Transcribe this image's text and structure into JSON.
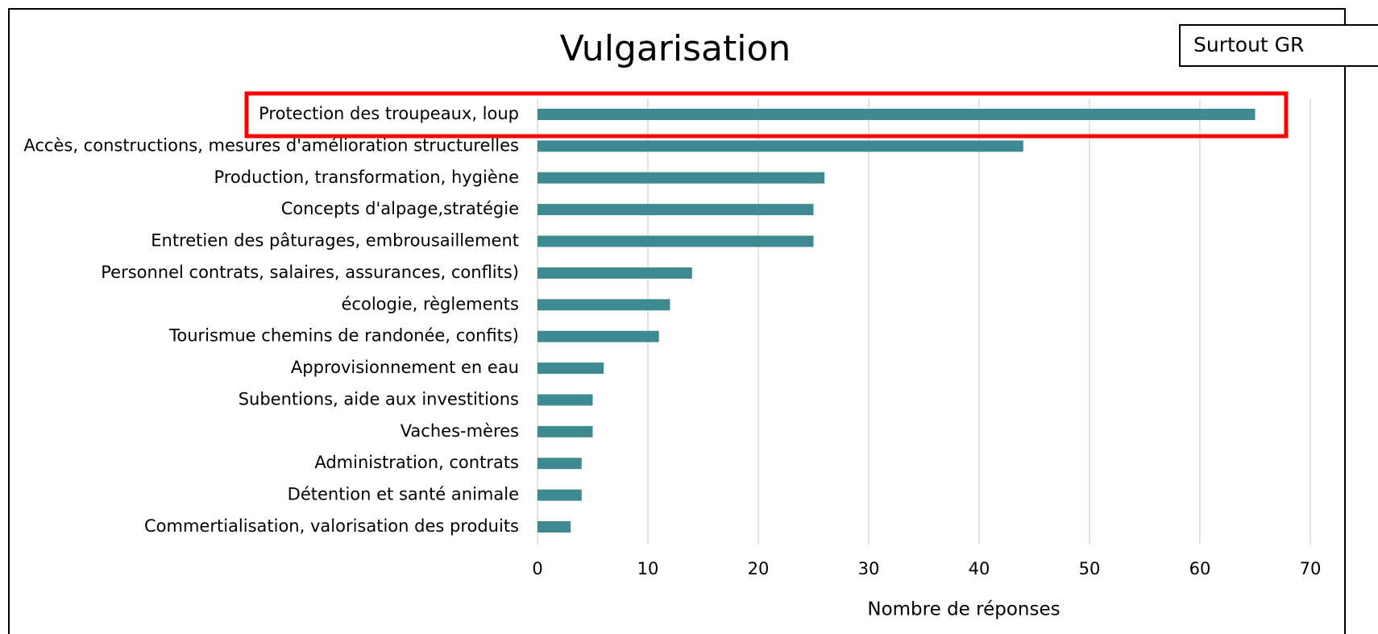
{
  "chart_data": {
    "type": "bar",
    "orientation": "horizontal",
    "title": "Vulgarisation",
    "annotation": "Surtout GR",
    "xlabel": "Nombre de réponses",
    "categories": [
      "Protection des troupeaux, loup",
      "Accès, constructions, mesures d'amélioration structurelles",
      "Production, transformation, hygiène",
      "Concepts d'alpage,stratégie",
      "Entretien des pâturages, embrousaillement",
      "Personnel contrats, salaires, assurances, conflits)",
      "écologie, règlements",
      "Tourismue chemins de randonée, confits)",
      "Approvisionnement en eau",
      "Subentions, aide aux investitions",
      "Vaches-mères",
      "Administration, contrats",
      "Détention et santé animale",
      "Commertialisation, valorisation des produits"
    ],
    "values": [
      65,
      44,
      26,
      25,
      25,
      14,
      12,
      11,
      6,
      5,
      5,
      4,
      4,
      3
    ],
    "color": "#3d8b91",
    "xlim": [
      0,
      70
    ],
    "xticks": [
      0,
      10,
      20,
      30,
      40,
      50,
      60,
      70
    ],
    "grid": true
  }
}
